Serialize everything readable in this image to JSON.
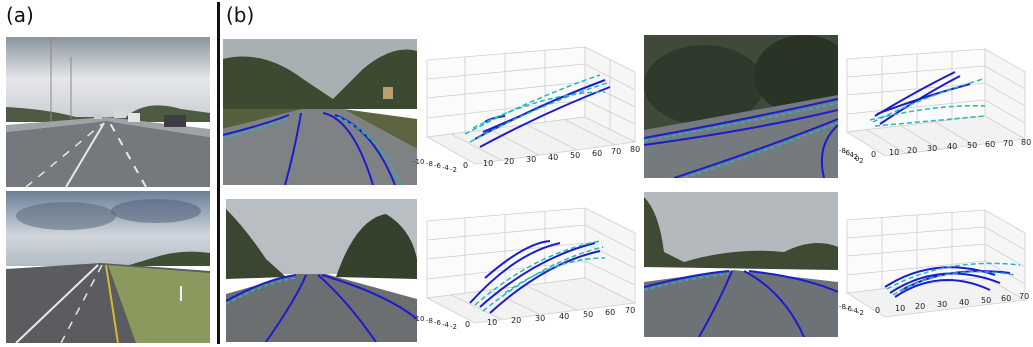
{
  "labels": {
    "panel_a": "(a)",
    "panel_b": "(b)"
  },
  "plot_top_left": {
    "x_ticks": [
      "0",
      "10",
      "20",
      "30",
      "40",
      "50",
      "60",
      "70",
      "80"
    ],
    "depth_ticks": [
      "-10",
      "-8",
      "-6",
      "-4",
      "-2"
    ]
  },
  "plot_top_right": {
    "x_ticks": [
      "0",
      "10",
      "20",
      "30",
      "40",
      "50",
      "60",
      "70",
      "80"
    ],
    "depth_ticks": [
      "-8",
      "-6",
      "-4",
      "-2",
      "0",
      "2"
    ]
  },
  "plot_bottom_left": {
    "x_ticks": [
      "0",
      "10",
      "20",
      "30",
      "40",
      "50",
      "60",
      "70"
    ],
    "depth_ticks": [
      "-10",
      "-8",
      "-6",
      "-4",
      "-2"
    ]
  },
  "plot_bottom_right": {
    "x_ticks": [
      "0",
      "10",
      "20",
      "30",
      "40",
      "50",
      "60",
      "70"
    ],
    "depth_ticks": [
      "-8",
      "-6",
      "-4",
      "-2"
    ]
  },
  "colors": {
    "predicted": "#1c1ccf",
    "ground_truth": "#22b8b8",
    "grid": "#cfcfcf"
  }
}
